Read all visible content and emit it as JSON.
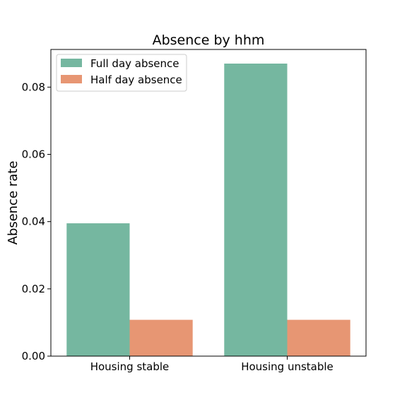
{
  "chart_data": {
    "type": "bar",
    "title": "Absence by hhm",
    "xlabel": "",
    "ylabel": "Absence rate",
    "categories": [
      "Housing stable",
      "Housing unstable"
    ],
    "series": [
      {
        "name": "Full day absence",
        "values": [
          0.0395,
          0.087
        ],
        "color": "#75b7a0"
      },
      {
        "name": "Half day absence",
        "values": [
          0.0108,
          0.0108
        ],
        "color": "#e79673"
      }
    ],
    "ylim": [
      0,
      0.0912
    ],
    "yticks": [
      {
        "value": 0.0,
        "label": "0.00"
      },
      {
        "value": 0.02,
        "label": "0.02"
      },
      {
        "value": 0.04,
        "label": "0.04"
      },
      {
        "value": 0.06,
        "label": "0.06"
      },
      {
        "value": 0.08,
        "label": "0.08"
      }
    ],
    "grid": false,
    "legend_position": "top-left"
  }
}
